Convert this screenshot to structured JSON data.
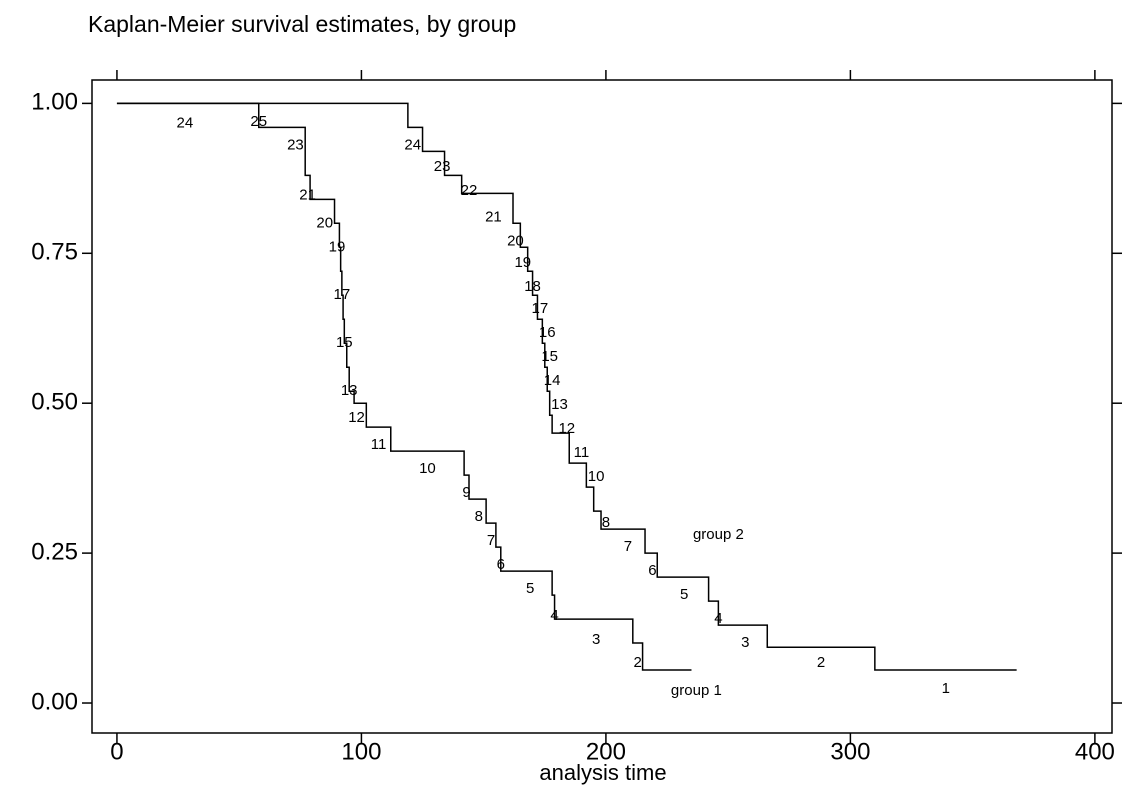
{
  "chart_data": {
    "type": "step",
    "title": "Kaplan-Meier survival estimates, by group",
    "xlabel": "analysis time",
    "xlim": [
      -10.2,
      407
    ],
    "ylim": [
      -0.05,
      1.039
    ],
    "xticks": [
      0,
      100,
      200,
      300,
      400
    ],
    "yticks": [
      {
        "value": 0,
        "label": "0.00"
      },
      {
        "value": 0.25,
        "label": "0.25"
      },
      {
        "value": 0.5,
        "label": "0.50"
      },
      {
        "value": 0.75,
        "label": "0.75"
      },
      {
        "value": 1,
        "label": "1.00"
      }
    ],
    "series": [
      {
        "name": "group 1",
        "color": "#000000",
        "x": [
          0,
          58,
          77,
          79,
          89,
          91,
          91.5,
          92,
          92.5,
          93,
          94,
          95,
          97,
          102,
          112,
          142,
          144,
          151,
          155,
          157,
          178,
          179,
          211,
          215,
          235
        ],
        "values": [
          1,
          0.96,
          0.88,
          0.84,
          0.8,
          0.76,
          0.72,
          0.68,
          0.64,
          0.6,
          0.56,
          0.52,
          0.5,
          0.46,
          0.42,
          0.38,
          0.34,
          0.3,
          0.26,
          0.22,
          0.18,
          0.14,
          0.1,
          0.055,
          0.055
        ]
      },
      {
        "name": "group 2",
        "color": "#000000",
        "x": [
          0,
          119,
          125,
          134,
          141,
          162,
          165,
          168,
          170,
          172,
          174,
          175,
          176,
          177,
          178,
          185,
          192,
          195,
          198,
          216,
          221,
          242,
          246,
          266,
          310,
          368
        ],
        "values": [
          1,
          0.96,
          0.92,
          0.88,
          0.85,
          0.8,
          0.76,
          0.72,
          0.68,
          0.64,
          0.6,
          0.56,
          0.52,
          0.48,
          0.45,
          0.4,
          0.36,
          0.32,
          0.29,
          0.25,
          0.21,
          0.17,
          0.13,
          0.093,
          0.055,
          0.055
        ]
      }
    ],
    "annotations": [
      {
        "text": "24",
        "x": 27.8,
        "y": 0.966
      },
      {
        "text": "25",
        "x": 58,
        "y": 0.969
      },
      {
        "text": "23",
        "x": 73,
        "y": 0.93
      },
      {
        "text": "21",
        "x": 78,
        "y": 0.846
      },
      {
        "text": "20",
        "x": 85,
        "y": 0.8
      },
      {
        "text": "19",
        "x": 90,
        "y": 0.76
      },
      {
        "text": "17",
        "x": 92,
        "y": 0.68
      },
      {
        "text": "15",
        "x": 93,
        "y": 0.6
      },
      {
        "text": "13",
        "x": 95,
        "y": 0.52
      },
      {
        "text": "12",
        "x": 98,
        "y": 0.475
      },
      {
        "text": "11",
        "x": 107,
        "y": 0.43
      },
      {
        "text": "10",
        "x": 127,
        "y": 0.39
      },
      {
        "text": "9",
        "x": 143,
        "y": 0.35
      },
      {
        "text": "8",
        "x": 148,
        "y": 0.31
      },
      {
        "text": "7",
        "x": 153,
        "y": 0.27
      },
      {
        "text": "6",
        "x": 157,
        "y": 0.23
      },
      {
        "text": "5",
        "x": 169,
        "y": 0.19
      },
      {
        "text": "4",
        "x": 179,
        "y": 0.145
      },
      {
        "text": "3",
        "x": 196,
        "y": 0.105
      },
      {
        "text": "2",
        "x": 213,
        "y": 0.067
      },
      {
        "text": "group 1",
        "x": 237,
        "y": 0.02
      },
      {
        "text": "24",
        "x": 121,
        "y": 0.93
      },
      {
        "text": "23",
        "x": 133,
        "y": 0.894
      },
      {
        "text": "22",
        "x": 144,
        "y": 0.854
      },
      {
        "text": "21",
        "x": 154,
        "y": 0.81
      },
      {
        "text": "20",
        "x": 163,
        "y": 0.77
      },
      {
        "text": "19",
        "x": 166,
        "y": 0.734
      },
      {
        "text": "18",
        "x": 170,
        "y": 0.694
      },
      {
        "text": "17",
        "x": 173,
        "y": 0.657
      },
      {
        "text": "16",
        "x": 176,
        "y": 0.617
      },
      {
        "text": "15",
        "x": 177,
        "y": 0.577
      },
      {
        "text": "14",
        "x": 178,
        "y": 0.537
      },
      {
        "text": "13",
        "x": 181,
        "y": 0.497
      },
      {
        "text": "12",
        "x": 184,
        "y": 0.457
      },
      {
        "text": "11",
        "x": 190,
        "y": 0.417
      },
      {
        "text": "10",
        "x": 196,
        "y": 0.377
      },
      {
        "text": "8",
        "x": 200,
        "y": 0.3
      },
      {
        "text": "7",
        "x": 209,
        "y": 0.26
      },
      {
        "text": "group 2",
        "x": 246,
        "y": 0.28
      },
      {
        "text": "6",
        "x": 219,
        "y": 0.22
      },
      {
        "text": "5",
        "x": 232,
        "y": 0.18
      },
      {
        "text": "4",
        "x": 246,
        "y": 0.14
      },
      {
        "text": "3",
        "x": 257,
        "y": 0.1
      },
      {
        "text": "2",
        "x": 288,
        "y": 0.067
      },
      {
        "text": "1",
        "x": 339,
        "y": 0.023
      }
    ]
  }
}
